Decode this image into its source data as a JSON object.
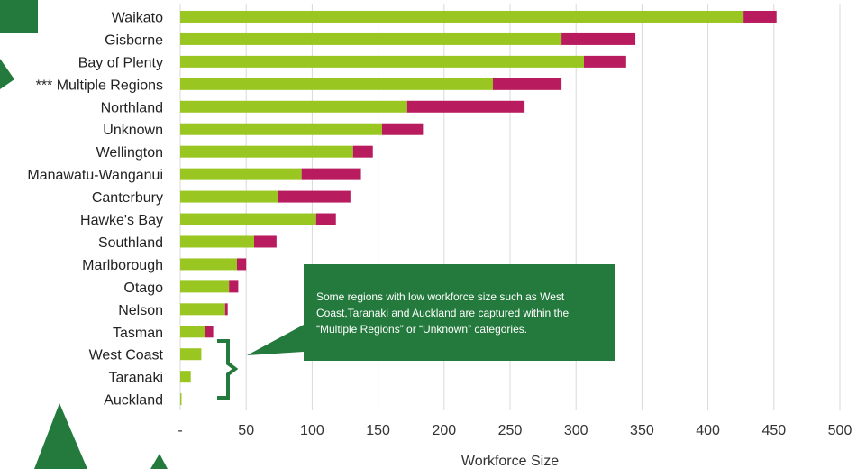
{
  "chart_data": {
    "type": "bar",
    "orientation": "horizontal",
    "stacked": true,
    "categories": [
      "Waikato",
      "Gisborne",
      "Bay of Plenty",
      "*** Multiple Regions",
      "Northland",
      "Unknown",
      "Wellington",
      "Manawatu-Wanganui",
      "Canterbury",
      "Hawke's Bay",
      "Southland",
      "Marlborough",
      "Otago",
      "Nelson",
      "Tasman",
      "West Coast",
      "Taranaki",
      "Auckland"
    ],
    "series": [
      {
        "color": "#9ac621",
        "values": [
          427,
          289,
          306,
          237,
          172,
          153,
          131,
          92,
          74,
          103,
          56,
          43,
          37,
          34,
          19,
          16,
          8,
          1
        ]
      },
      {
        "color": "#b81c5e",
        "values": [
          25,
          56,
          32,
          52,
          89,
          31,
          15,
          45,
          55,
          15,
          17,
          7,
          7,
          2,
          6,
          0,
          0,
          0
        ]
      }
    ],
    "xlabel": "Workforce Size",
    "xlim": [
      0,
      500
    ],
    "xticks": [
      0,
      50,
      100,
      150,
      200,
      250,
      300,
      350,
      400,
      450,
      500
    ],
    "xtick_labels": [
      "-",
      "50",
      "100",
      "150",
      "200",
      "250",
      "300",
      "350",
      "400",
      "450",
      "500"
    ],
    "grid": "vertical",
    "annotation": {
      "lines": [
        "Some regions with low workforce size such as West",
        "Coast,Taranaki and Auckland are captured within the",
        "“Multiple Regions” or “Unknown” categories."
      ],
      "background": "#247a3d",
      "refers_to": [
        "West Coast",
        "Taranaki",
        "Auckland"
      ]
    },
    "decoration_color": "#247a3d"
  }
}
